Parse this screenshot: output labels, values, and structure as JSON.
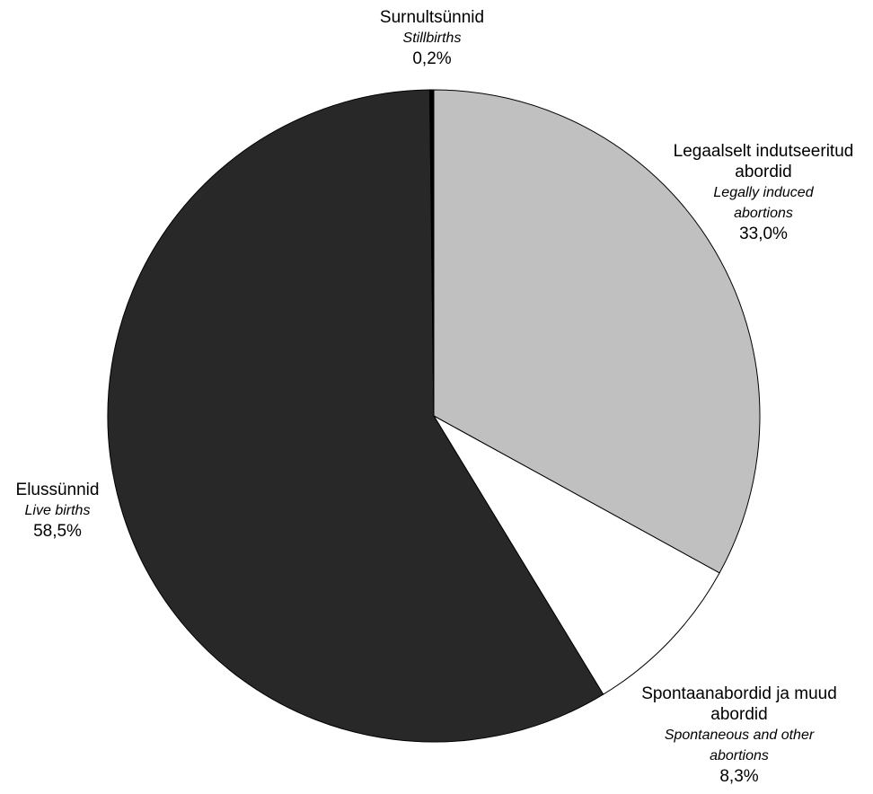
{
  "chart_data": {
    "type": "pie",
    "start_angle_deg": 0,
    "direction": "clockwise",
    "slices": [
      {
        "label_et": "Legaalselt indutseeritud abordid",
        "label_et_lines": [
          "Legaalselt indutseeritud",
          "abordid"
        ],
        "label_en": "Legally induced abortions",
        "label_en_lines": [
          "Legally induced",
          "abortions"
        ],
        "value": 33.0,
        "percent_text": "33,0%",
        "color": "#c0c0c0"
      },
      {
        "label_et": "Spontaanabordid ja muud abordid",
        "label_et_lines": [
          "Spontaanabordid ja muud",
          "abordid"
        ],
        "label_en": "Spontaneous and other abortions",
        "label_en_lines": [
          "Spontaneous and other",
          "abortions"
        ],
        "value": 8.3,
        "percent_text": "8,3%",
        "color": "#ffffff"
      },
      {
        "label_et": "Elussünnid",
        "label_et_lines": [
          "Elussünnid"
        ],
        "label_en": "Live births",
        "label_en_lines": [
          "Live births"
        ],
        "value": 58.5,
        "percent_text": "58,5%",
        "color": "#282828"
      },
      {
        "label_et": "Surnultsünnid",
        "label_et_lines": [
          "Surnultsünnid"
        ],
        "label_en": "Stillbirths",
        "label_en_lines": [
          "Stillbirths"
        ],
        "value": 0.2,
        "percent_text": "0,2%",
        "color": "#000000"
      }
    ]
  }
}
